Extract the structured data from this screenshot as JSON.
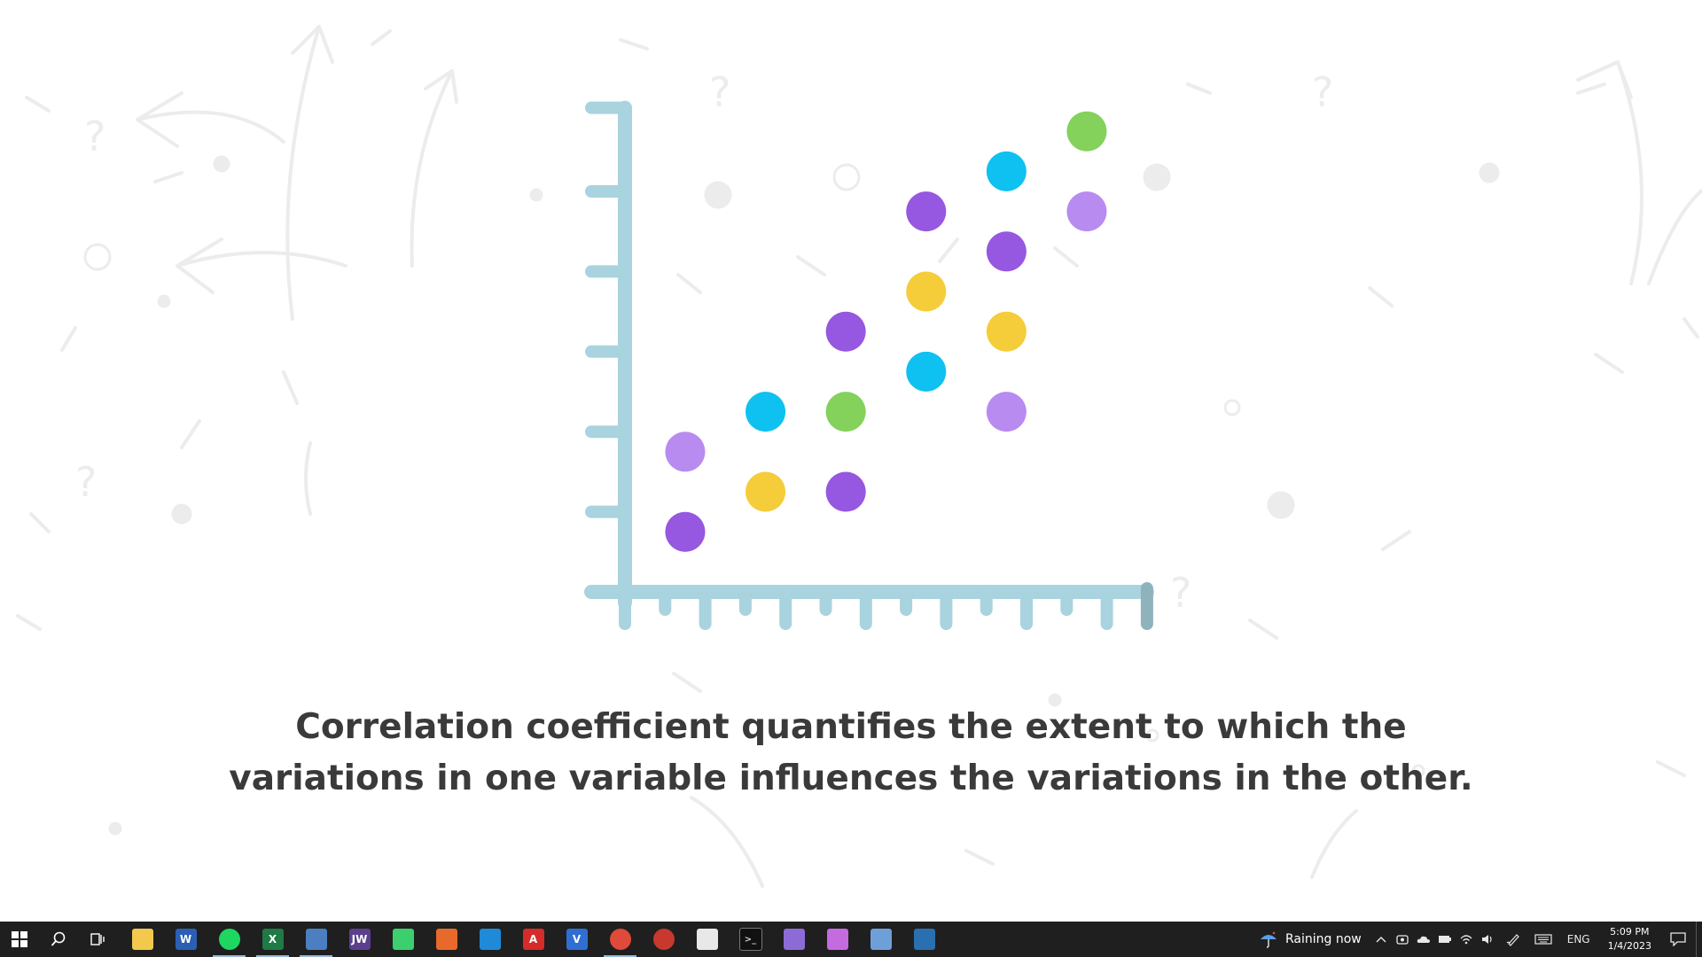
{
  "caption": {
    "line1": "Correlation coefficient quantifies the extent to which the",
    "line2": "variations in one variable influences the variations in the other."
  },
  "colors": {
    "axis": "#a9d3de",
    "axis_end": "#8fb3bd",
    "purple": "#9657e1",
    "lavender": "#b88bf0",
    "cyan": "#0fc1f0",
    "yellow": "#f5cc3a",
    "green": "#84d15c",
    "decor": "#ececec",
    "taskbar": "#1f1f1f"
  },
  "chart_data": {
    "type": "scatter",
    "title": "",
    "xlabel": "",
    "ylabel": "",
    "xlim": [
      0,
      13
    ],
    "ylim": [
      0,
      12
    ],
    "grid": false,
    "x_ticks": [
      1,
      2,
      3,
      4,
      5,
      6,
      7,
      8,
      9,
      10,
      11,
      12
    ],
    "y_ticks": [
      2,
      4,
      6,
      8,
      10,
      12
    ],
    "points": [
      {
        "x": 1.5,
        "y": 1.5,
        "color": "purple"
      },
      {
        "x": 1.5,
        "y": 3.5,
        "color": "lavender"
      },
      {
        "x": 3.5,
        "y": 2.5,
        "color": "yellow"
      },
      {
        "x": 3.5,
        "y": 4.5,
        "color": "cyan"
      },
      {
        "x": 5.5,
        "y": 2.5,
        "color": "purple"
      },
      {
        "x": 5.5,
        "y": 4.5,
        "color": "green"
      },
      {
        "x": 5.5,
        "y": 6.5,
        "color": "purple"
      },
      {
        "x": 7.5,
        "y": 5.5,
        "color": "cyan"
      },
      {
        "x": 7.5,
        "y": 7.5,
        "color": "yellow"
      },
      {
        "x": 7.5,
        "y": 9.5,
        "color": "purple"
      },
      {
        "x": 9.5,
        "y": 4.5,
        "color": "lavender"
      },
      {
        "x": 9.5,
        "y": 6.5,
        "color": "yellow"
      },
      {
        "x": 9.5,
        "y": 8.5,
        "color": "purple"
      },
      {
        "x": 9.5,
        "y": 10.5,
        "color": "cyan"
      },
      {
        "x": 11.5,
        "y": 9.5,
        "color": "lavender"
      },
      {
        "x": 11.5,
        "y": 11.5,
        "color": "green"
      }
    ]
  },
  "taskbar": {
    "apps": [
      {
        "name": "file-explorer",
        "icon": "folder-icon",
        "label": "",
        "color": "#f2c94c",
        "active": false
      },
      {
        "name": "word",
        "icon": "word-icon",
        "label": "W",
        "color": "#2b5fb4",
        "active": false
      },
      {
        "name": "spotify",
        "icon": "spotify-icon",
        "label": "",
        "color": "#1ed760",
        "active": true
      },
      {
        "name": "excel",
        "icon": "excel-icon",
        "label": "X",
        "color": "#1f7a45",
        "active": true
      },
      {
        "name": "calculator",
        "icon": "calculator-icon",
        "label": "",
        "color": "#4a7fc1",
        "active": true
      },
      {
        "name": "jw",
        "icon": "jw-icon",
        "label": "JW",
        "color": "#5b3f8c",
        "active": false
      },
      {
        "name": "player",
        "icon": "play-icon",
        "label": "",
        "color": "#3ccf6e",
        "active": false
      },
      {
        "name": "matlab",
        "icon": "matlab-icon",
        "label": "",
        "color": "#e8692c",
        "active": false
      },
      {
        "name": "vscode",
        "icon": "vscode-icon",
        "label": "",
        "color": "#1f8ad8",
        "active": false
      },
      {
        "name": "acrobat",
        "icon": "acrobat-icon",
        "label": "A",
        "color": "#d62b2b",
        "active": false
      },
      {
        "name": "visio",
        "icon": "visio-icon",
        "label": "V",
        "color": "#2f6fd1",
        "active": false
      },
      {
        "name": "chrome",
        "icon": "chrome-icon",
        "label": "",
        "color": "#e04a3a",
        "active": true
      },
      {
        "name": "chrome-dev",
        "icon": "chrome-dev-icon",
        "label": "",
        "color": "#c7392e",
        "active": false
      },
      {
        "name": "slack",
        "icon": "slack-icon",
        "label": "",
        "color": "#e8e8e8",
        "active": false
      },
      {
        "name": "terminal",
        "icon": "terminal-icon",
        "label": "",
        "color": "#111111",
        "active": false
      },
      {
        "name": "git",
        "icon": "git-icon",
        "label": "",
        "color": "#8d6bd6",
        "active": false
      },
      {
        "name": "drop",
        "icon": "drop-icon",
        "label": "",
        "color": "#c46be0",
        "active": false
      },
      {
        "name": "virtualbox",
        "icon": "virtualbox-icon",
        "label": "",
        "color": "#6f9fd8",
        "active": false
      },
      {
        "name": "app-k",
        "icon": "k-app-icon",
        "label": "",
        "color": "#2a6fb0",
        "active": false
      }
    ],
    "weather": {
      "text": "Raining now",
      "icon": "umbrella-rain-icon"
    },
    "language": "ENG",
    "time": "5:09 PM",
    "date": "1/4/2023"
  }
}
